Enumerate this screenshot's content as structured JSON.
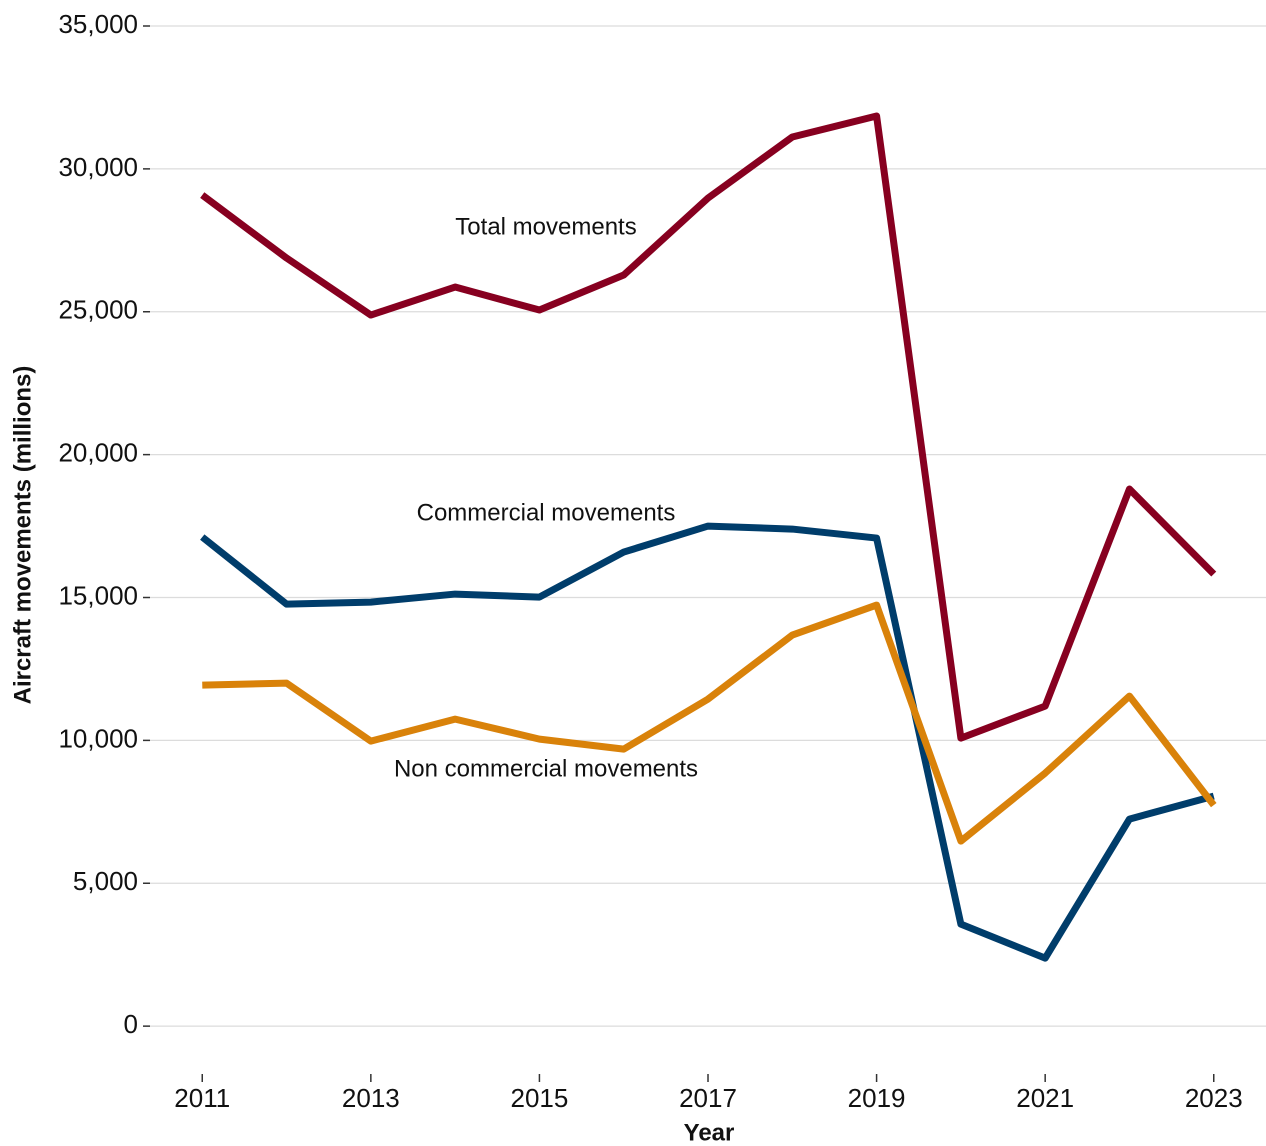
{
  "chart_data": {
    "type": "line",
    "xlabel": "Year",
    "ylabel": "Aircraft movements   (millions)",
    "x": [
      2011,
      2012,
      2013,
      2014,
      2015,
      2016,
      2017,
      2018,
      2019,
      2020,
      2021,
      2022,
      2023
    ],
    "series": [
      {
        "name": "Total movements",
        "color": "#870020",
        "values": [
          29085,
          26880,
          24885,
          25865,
          25060,
          26285,
          28980,
          31115,
          31850,
          10080,
          11200,
          18795,
          15820
        ]
      },
      {
        "name": "Commercial movements",
        "color": "#003d6b",
        "values": [
          17115,
          14770,
          14840,
          15120,
          15015,
          16590,
          17500,
          17395,
          17080,
          3570,
          2380,
          7245,
          8050
        ]
      },
      {
        "name": "Non commercial movements",
        "color": "#d9820a",
        "values": [
          11935,
          12005,
          9975,
          10745,
          10045,
          9695,
          11445,
          13685,
          14735,
          6475,
          8855,
          11550,
          7735
        ]
      }
    ],
    "xlim": [
      2010.38,
      2023.43
    ],
    "xticks": [
      2011,
      2013,
      2015,
      2017,
      2019,
      2021,
      2023
    ],
    "ylim": [
      -1500,
      35000
    ],
    "yticks": [
      0,
      {
        "value": 5000,
        "label": "5,000"
      },
      {
        "value": 10000,
        "label": "10,000"
      },
      {
        "value": 15000,
        "label": "15,000"
      },
      {
        "value": 20000,
        "label": "20,000"
      },
      {
        "value": 25000,
        "label": "25,000"
      },
      {
        "value": 30000,
        "label": "30,000"
      },
      {
        "value": 35000,
        "label": "35,000"
      }
    ],
    "grid": true
  }
}
